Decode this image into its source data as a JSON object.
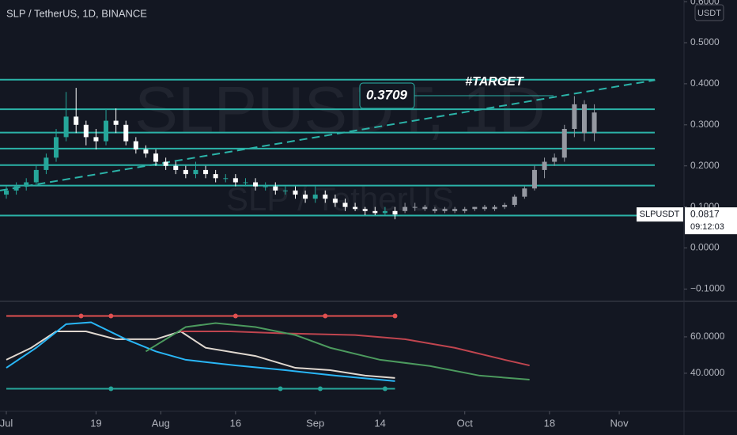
{
  "chart_data": [
    {
      "type": "candlestick",
      "title": "SLP / TetherUS, 1D, BINANCE",
      "watermark": "SLPUSDT, 1D",
      "watermark_sub": "SLP / TetherUS",
      "currency": "USDT",
      "ylim": [
        -0.128,
        0.604
      ],
      "yticks": [
        {
          "value": 0.6,
          "label": "0.6000"
        },
        {
          "value": 0.5,
          "label": "0.5000"
        },
        {
          "value": 0.4,
          "label": "0.4000"
        },
        {
          "value": 0.3,
          "label": "0.3000"
        },
        {
          "value": 0.2,
          "label": "0.2000"
        },
        {
          "value": 0.1,
          "label": "0.1000"
        },
        {
          "value": 0,
          "label": "0.0000"
        },
        {
          "value": -0.1,
          "label": "−0.1000"
        }
      ],
      "xlim": [
        -1.27,
        136
      ],
      "xticks": [
        {
          "value": 0,
          "label": "Jul"
        },
        {
          "value": 18,
          "label": "19"
        },
        {
          "value": 31,
          "label": "Aug"
        },
        {
          "value": 46,
          "label": "16"
        },
        {
          "value": 62,
          "label": "Sep"
        },
        {
          "value": 75,
          "label": "14"
        },
        {
          "value": 92,
          "label": "Oct"
        },
        {
          "value": 109,
          "label": "18"
        },
        {
          "value": 123,
          "label": "Nov"
        }
      ],
      "up_color": "#26a69a",
      "down_color": "#ffffff",
      "candles": {
        "x": [
          0,
          2,
          4,
          6,
          8,
          10,
          12,
          14,
          16,
          18,
          20,
          22,
          24,
          26,
          28,
          30,
          32,
          34,
          36,
          38,
          40,
          42,
          44,
          46,
          48,
          50,
          52,
          54,
          56,
          58,
          60,
          62,
          64,
          66,
          68,
          70,
          72,
          74,
          76,
          78
        ],
        "ohlc": [
          [
            0.13,
            0.15,
            0.12,
            0.14
          ],
          [
            0.14,
            0.16,
            0.13,
            0.15
          ],
          [
            0.15,
            0.17,
            0.14,
            0.16
          ],
          [
            0.16,
            0.2,
            0.15,
            0.19
          ],
          [
            0.19,
            0.23,
            0.18,
            0.22
          ],
          [
            0.22,
            0.29,
            0.21,
            0.27
          ],
          [
            0.27,
            0.38,
            0.26,
            0.32
          ],
          [
            0.32,
            0.39,
            0.28,
            0.3
          ],
          [
            0.3,
            0.31,
            0.25,
            0.27
          ],
          [
            0.27,
            0.29,
            0.24,
            0.26
          ],
          [
            0.26,
            0.34,
            0.25,
            0.31
          ],
          [
            0.31,
            0.34,
            0.28,
            0.3
          ],
          [
            0.3,
            0.31,
            0.25,
            0.26
          ],
          [
            0.26,
            0.27,
            0.23,
            0.24
          ],
          [
            0.24,
            0.25,
            0.22,
            0.23
          ],
          [
            0.23,
            0.24,
            0.2,
            0.21
          ],
          [
            0.21,
            0.22,
            0.19,
            0.2
          ],
          [
            0.2,
            0.21,
            0.18,
            0.19
          ],
          [
            0.19,
            0.2,
            0.17,
            0.18
          ],
          [
            0.18,
            0.21,
            0.17,
            0.19
          ],
          [
            0.19,
            0.2,
            0.17,
            0.18
          ],
          [
            0.18,
            0.19,
            0.16,
            0.17
          ],
          [
            0.17,
            0.18,
            0.16,
            0.17
          ],
          [
            0.17,
            0.18,
            0.15,
            0.16
          ],
          [
            0.16,
            0.17,
            0.15,
            0.16
          ],
          [
            0.16,
            0.17,
            0.14,
            0.15
          ],
          [
            0.15,
            0.16,
            0.14,
            0.15
          ],
          [
            0.15,
            0.16,
            0.13,
            0.14
          ],
          [
            0.14,
            0.15,
            0.13,
            0.14
          ],
          [
            0.14,
            0.15,
            0.12,
            0.13
          ],
          [
            0.13,
            0.14,
            0.11,
            0.12
          ],
          [
            0.12,
            0.15,
            0.11,
            0.13
          ],
          [
            0.13,
            0.14,
            0.11,
            0.12
          ],
          [
            0.12,
            0.13,
            0.1,
            0.11
          ],
          [
            0.11,
            0.12,
            0.09,
            0.1
          ],
          [
            0.1,
            0.11,
            0.09,
            0.095
          ],
          [
            0.095,
            0.1,
            0.08,
            0.09
          ],
          [
            0.09,
            0.1,
            0.08,
            0.085
          ],
          [
            0.085,
            0.1,
            0.08,
            0.09
          ],
          [
            0.09,
            0.1,
            0.07,
            0.0817
          ]
        ]
      },
      "projection": {
        "color": "#9598a1",
        "x": [
          80,
          82,
          84,
          86,
          88,
          90,
          92,
          94,
          96,
          98,
          100,
          102,
          104,
          106,
          108,
          110,
          112,
          114,
          116,
          118
        ],
        "ohlc": [
          [
            0.09,
            0.11,
            0.085,
            0.1
          ],
          [
            0.1,
            0.11,
            0.09,
            0.1
          ],
          [
            0.1,
            0.105,
            0.09,
            0.095
          ],
          [
            0.095,
            0.1,
            0.085,
            0.09
          ],
          [
            0.09,
            0.1,
            0.085,
            0.095
          ],
          [
            0.095,
            0.1,
            0.085,
            0.09
          ],
          [
            0.09,
            0.1,
            0.085,
            0.095
          ],
          [
            0.095,
            0.1,
            0.09,
            0.1
          ],
          [
            0.1,
            0.105,
            0.09,
            0.095
          ],
          [
            0.095,
            0.105,
            0.09,
            0.1
          ],
          [
            0.1,
            0.11,
            0.095,
            0.105
          ],
          [
            0.105,
            0.13,
            0.1,
            0.125
          ],
          [
            0.125,
            0.15,
            0.12,
            0.145
          ],
          [
            0.145,
            0.2,
            0.14,
            0.19
          ],
          [
            0.19,
            0.22,
            0.17,
            0.21
          ],
          [
            0.21,
            0.23,
            0.2,
            0.22
          ],
          [
            0.22,
            0.3,
            0.21,
            0.29
          ],
          [
            0.29,
            0.37,
            0.27,
            0.35
          ],
          [
            0.35,
            0.36,
            0.26,
            0.28
          ],
          [
            0.28,
            0.35,
            0.26,
            0.33
          ]
        ]
      },
      "levels": [
        0.41,
        0.338,
        0.281,
        0.242,
        0.202,
        0.152,
        0.079
      ],
      "level_color": "#2bb3a8",
      "trendline": {
        "x": [
          -1.27,
          130.2
        ],
        "values": [
          0.14,
          0.409
        ]
      },
      "target_value": 0.3709,
      "target_label": "#TARGET",
      "last_name": "SLPUSDT",
      "last_value": 0.0817,
      "countdown": "09:12:03"
    },
    {
      "type": "line",
      "ylim": [
        19.1,
        79.1
      ],
      "yticks": [
        {
          "value": 40,
          "label": "40.0000"
        },
        {
          "value": 60,
          "label": "60.0000"
        }
      ],
      "series": [
        {
          "color": "#e05050",
          "x": [
            0,
            78
          ],
          "values": [
            71.5,
            71.5
          ],
          "markers": [
            15,
            21,
            46,
            64,
            78
          ]
        },
        {
          "color": "#26a69a",
          "x": [
            0,
            78
          ],
          "values": [
            31.5,
            31.5
          ],
          "markers": [
            21,
            55,
            63,
            76
          ]
        },
        {
          "color": "#e0d8d0",
          "x": [
            0,
            5,
            10,
            16,
            22,
            30,
            35,
            40,
            50,
            58,
            65,
            72,
            78
          ],
          "values": [
            47.4,
            54,
            63,
            63,
            58.7,
            58.7,
            63,
            54,
            49.5,
            43,
            41.7,
            38.7,
            37.4
          ]
        },
        {
          "color": "#29b6f6",
          "x": [
            0,
            6,
            12,
            17,
            24,
            30,
            36,
            46,
            56,
            66,
            78
          ],
          "values": [
            43,
            54,
            67,
            68,
            58.7,
            52,
            47.4,
            44.3,
            41.7,
            38.7,
            35.7
          ]
        },
        {
          "color": "#c0454f",
          "x": [
            35,
            45,
            55,
            70,
            80,
            90,
            100,
            105
          ],
          "values": [
            63,
            63,
            62,
            61,
            58.7,
            54,
            47.4,
            44.3
          ]
        },
        {
          "color": "#4c9a5e",
          "x": [
            28,
            36,
            42,
            50,
            58,
            65,
            75,
            85,
            95,
            105
          ],
          "values": [
            52,
            65.4,
            67.6,
            65.4,
            61,
            54,
            47.4,
            44,
            38.7,
            36.5
          ]
        }
      ]
    }
  ]
}
